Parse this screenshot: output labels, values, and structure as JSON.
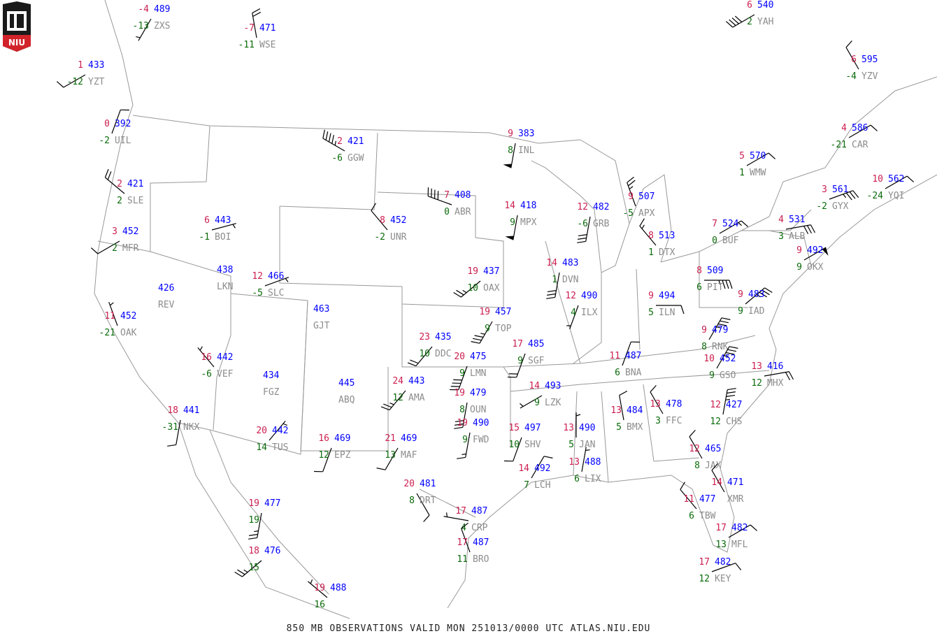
{
  "logo": {
    "text": "NIU",
    "colors": {
      "shield": "#1a1a1a",
      "band": "#d2232a"
    }
  },
  "footer": {
    "text": "850 MB OBSERVATIONS VALID  MON 251013/0000 UTC  ATLAS.NIU.EDU"
  },
  "colors": {
    "temperature": "#cc1f4f",
    "dewpoint": "#0a6b0a",
    "height": "#0000ff",
    "station": "#8c8c8c",
    "wind": "#000000",
    "borders": "#999999"
  },
  "stations": [
    {
      "id": "ZXS",
      "t": "-4",
      "td": "-13",
      "h": "489",
      "wind": [
        210,
        5
      ]
    },
    {
      "id": "WSE",
      "t": "-7",
      "td": "-11",
      "h": "471",
      "wind": [
        350,
        20
      ]
    },
    {
      "id": "YZT",
      "t": "1",
      "td": "-12",
      "h": "433",
      "wind": [
        240,
        10
      ]
    },
    {
      "id": "UIL",
      "t": "0",
      "td": "-2",
      "h": "392",
      "wind": [
        20,
        10
      ]
    },
    {
      "id": "SLE",
      "t": "2",
      "td": "2",
      "h": "421",
      "wind": [
        310,
        20
      ]
    },
    {
      "id": "MFR",
      "t": "3",
      "td": "2",
      "h": "452",
      "wind": [
        240,
        10
      ]
    },
    {
      "id": "BOI",
      "t": "6",
      "td": "-1",
      "h": "443",
      "wind": [
        75,
        5
      ]
    },
    {
      "id": "LKN",
      "t": "",
      "td": "",
      "h": "438",
      "wind": null
    },
    {
      "id": "REV",
      "t": "",
      "td": "",
      "h": "426",
      "wind": null
    },
    {
      "id": "SLC",
      "t": "12",
      "td": "-5",
      "h": "466",
      "wind": [
        70,
        5
      ]
    },
    {
      "id": "OAK",
      "t": "11",
      "td": "-21",
      "h": "452",
      "wind": [
        340,
        5
      ]
    },
    {
      "id": "GGW",
      "t": "2",
      "td": "-6",
      "h": "421",
      "wind": [
        300,
        45
      ]
    },
    {
      "id": "ABR",
      "t": "7",
      "td": "0",
      "h": "408",
      "wind": [
        290,
        40
      ]
    },
    {
      "id": "UNR",
      "t": "8",
      "td": "-2",
      "h": "452",
      "wind": [
        320,
        10
      ]
    },
    {
      "id": "INL",
      "t": "9",
      "td": "8",
      "h": "383",
      "wind": [
        190,
        50
      ]
    },
    {
      "id": "MPX",
      "t": "14",
      "td": "9",
      "h": "418",
      "wind": [
        190,
        50
      ]
    },
    {
      "id": "GRB",
      "t": "12",
      "td": "-6",
      "h": "482",
      "wind": [
        190,
        30
      ]
    },
    {
      "id": "APX",
      "t": "9",
      "td": "-5",
      "h": "507",
      "wind": [
        340,
        25
      ]
    },
    {
      "id": "DTX",
      "t": "8",
      "td": "1",
      "h": "513",
      "wind": [
        320,
        15
      ]
    },
    {
      "id": "BUF",
      "t": "7",
      "td": "0",
      "h": "524",
      "wind": [
        60,
        15
      ]
    },
    {
      "id": "ALB",
      "t": "4",
      "td": "3",
      "h": "531",
      "wind": [
        80,
        30
      ]
    },
    {
      "id": "GYX",
      "t": "3",
      "td": "-2",
      "h": "561",
      "wind": [
        70,
        35
      ]
    },
    {
      "id": "CAR",
      "t": "4",
      "td": "-21",
      "h": "586",
      "wind": [
        60,
        10
      ]
    },
    {
      "id": "YQI",
      "t": "10",
      "td": "-24",
      "h": "562",
      "wind": [
        60,
        10
      ]
    },
    {
      "id": "WMW",
      "t": "5",
      "td": "1",
      "h": "570",
      "wind": [
        60,
        10
      ]
    },
    {
      "id": "YAH",
      "t": "6",
      "td": "2",
      "h": "540",
      "wind": [
        240,
        40
      ]
    },
    {
      "id": "YZV",
      "t": "6",
      "td": "-4",
      "h": "595",
      "wind": [
        330,
        10
      ]
    },
    {
      "id": "OKX",
      "t": "9",
      "td": "9",
      "h": "492",
      "wind": [
        60,
        50
      ]
    },
    {
      "id": "PIT",
      "t": "8",
      "td": "6",
      "h": "509",
      "wind": [
        90,
        35
      ]
    },
    {
      "id": "IAD",
      "t": "9",
      "td": "9",
      "h": "483",
      "wind": [
        50,
        35
      ]
    },
    {
      "id": "ILN",
      "t": "9",
      "td": "5",
      "h": "494",
      "wind": [
        90,
        10
      ]
    },
    {
      "id": "DVN",
      "t": "14",
      "td": "1",
      "h": "483",
      "wind": [
        190,
        30
      ]
    },
    {
      "id": "ILX",
      "t": "12",
      "td": "4",
      "h": "490",
      "wind": [
        200,
        5
      ]
    },
    {
      "id": "OAX",
      "t": "19",
      "td": "10",
      "h": "437",
      "wind": [
        230,
        25
      ]
    },
    {
      "id": "TOP",
      "t": "19",
      "td": "9",
      "h": "457",
      "wind": [
        210,
        35
      ]
    },
    {
      "id": "SGF",
      "t": "17",
      "td": "9",
      "h": "485",
      "wind": [
        200,
        20
      ]
    },
    {
      "id": "DDC",
      "t": "23",
      "td": "10",
      "h": "435",
      "wind": [
        220,
        20
      ]
    },
    {
      "id": "LMN",
      "t": "20",
      "td": "9",
      "h": "475",
      "wind": [
        200,
        40
      ]
    },
    {
      "id": "OUN",
      "t": "19",
      "td": "8",
      "h": "479",
      "wind": [
        190,
        30
      ]
    },
    {
      "id": "AMA",
      "t": "24",
      "td": "12",
      "h": "443",
      "wind": [
        220,
        25
      ]
    },
    {
      "id": "LZK",
      "t": "14",
      "td": "9",
      "h": "493",
      "wind": [
        240,
        5
      ]
    },
    {
      "id": "BNA",
      "t": "11",
      "td": "6",
      "h": "487",
      "wind": [
        20,
        10
      ]
    },
    {
      "id": "RNK",
      "t": "9",
      "td": "8",
      "h": "479",
      "wind": [
        30,
        35
      ]
    },
    {
      "id": "GSO",
      "t": "10",
      "td": "9",
      "h": "452",
      "wind": [
        30,
        35
      ]
    },
    {
      "id": "MHX",
      "t": "13",
      "td": "12",
      "h": "416",
      "wind": [
        80,
        20
      ]
    },
    {
      "id": "CHS",
      "t": "12",
      "td": "12",
      "h": "427",
      "wind": [
        10,
        35
      ]
    },
    {
      "id": "FFC",
      "t": "13",
      "td": "3",
      "h": "478",
      "wind": [
        330,
        10
      ]
    },
    {
      "id": "BMX",
      "t": "13",
      "td": "5",
      "h": "484",
      "wind": [
        350,
        10
      ]
    },
    {
      "id": "JAN",
      "t": "13",
      "td": "5",
      "h": "490",
      "wind": [
        0,
        5
      ]
    },
    {
      "id": "SHV",
      "t": "15",
      "td": "10",
      "h": "497",
      "wind": [
        200,
        10
      ]
    },
    {
      "id": "FWD",
      "t": "19",
      "td": "9",
      "h": "490",
      "wind": [
        190,
        15
      ]
    },
    {
      "id": "MAF",
      "t": "21",
      "td": "13",
      "h": "469",
      "wind": [
        210,
        10
      ]
    },
    {
      "id": "EPZ",
      "t": "16",
      "td": "12",
      "h": "469",
      "wind": [
        200,
        10
      ]
    },
    {
      "id": "TUS",
      "t": "20",
      "td": "14",
      "h": "442",
      "wind": [
        40,
        5
      ]
    },
    {
      "id": "FGZ",
      "t": "",
      "td": "",
      "h": "434",
      "wind": null
    },
    {
      "id": "ABQ",
      "t": "",
      "td": "",
      "h": "445",
      "wind": null
    },
    {
      "id": "GJT",
      "t": "",
      "td": "",
      "h": "463",
      "wind": null
    },
    {
      "id": "VEF",
      "t": "16",
      "td": "-6",
      "h": "442",
      "wind": [
        320,
        5
      ]
    },
    {
      "id": "NKX",
      "t": "18",
      "td": "-31",
      "h": "441",
      "wind": [
        190,
        10
      ]
    },
    {
      "id": "LCH",
      "t": "14",
      "td": "7",
      "h": "492",
      "wind": [
        30,
        10
      ]
    },
    {
      "id": "LIX",
      "t": "13",
      "td": "6",
      "h": "488",
      "wind": [
        10,
        5
      ]
    },
    {
      "id": "DRT",
      "t": "20",
      "td": "8",
      "h": "481",
      "wind": [
        150,
        10
      ]
    },
    {
      "id": "CRP",
      "t": "17",
      "td": "4",
      "h": "487",
      "wind": [
        280,
        5
      ]
    },
    {
      "id": "BRO",
      "t": "17",
      "td": "11",
      "h": "487",
      "wind": [
        340,
        10
      ]
    },
    {
      "id": "JAX",
      "t": "12",
      "td": "8",
      "h": "465",
      "wind": [
        330,
        10
      ]
    },
    {
      "id": "XMR",
      "t": "14",
      "td": "",
      "h": "471",
      "wind": [
        330,
        10
      ]
    },
    {
      "id": "TBW",
      "t": "11",
      "td": "6",
      "h": "477",
      "wind": [
        320,
        10
      ]
    },
    {
      "id": "MFL",
      "t": "17",
      "td": "13",
      "h": "482",
      "wind": [
        60,
        10
      ]
    },
    {
      "id": "KEY",
      "t": "17",
      "td": "12",
      "h": "482",
      "wind": [
        70,
        10
      ]
    },
    {
      "id": "",
      "t": "19",
      "td": "19",
      "h": "477",
      "wind": [
        190,
        25
      ]
    },
    {
      "id": "",
      "t": "18",
      "td": "15",
      "h": "476",
      "wind": [
        230,
        25
      ]
    },
    {
      "id": "",
      "t": "19",
      "td": "16",
      "h": "488",
      "wind": [
        310,
        5
      ]
    }
  ]
}
